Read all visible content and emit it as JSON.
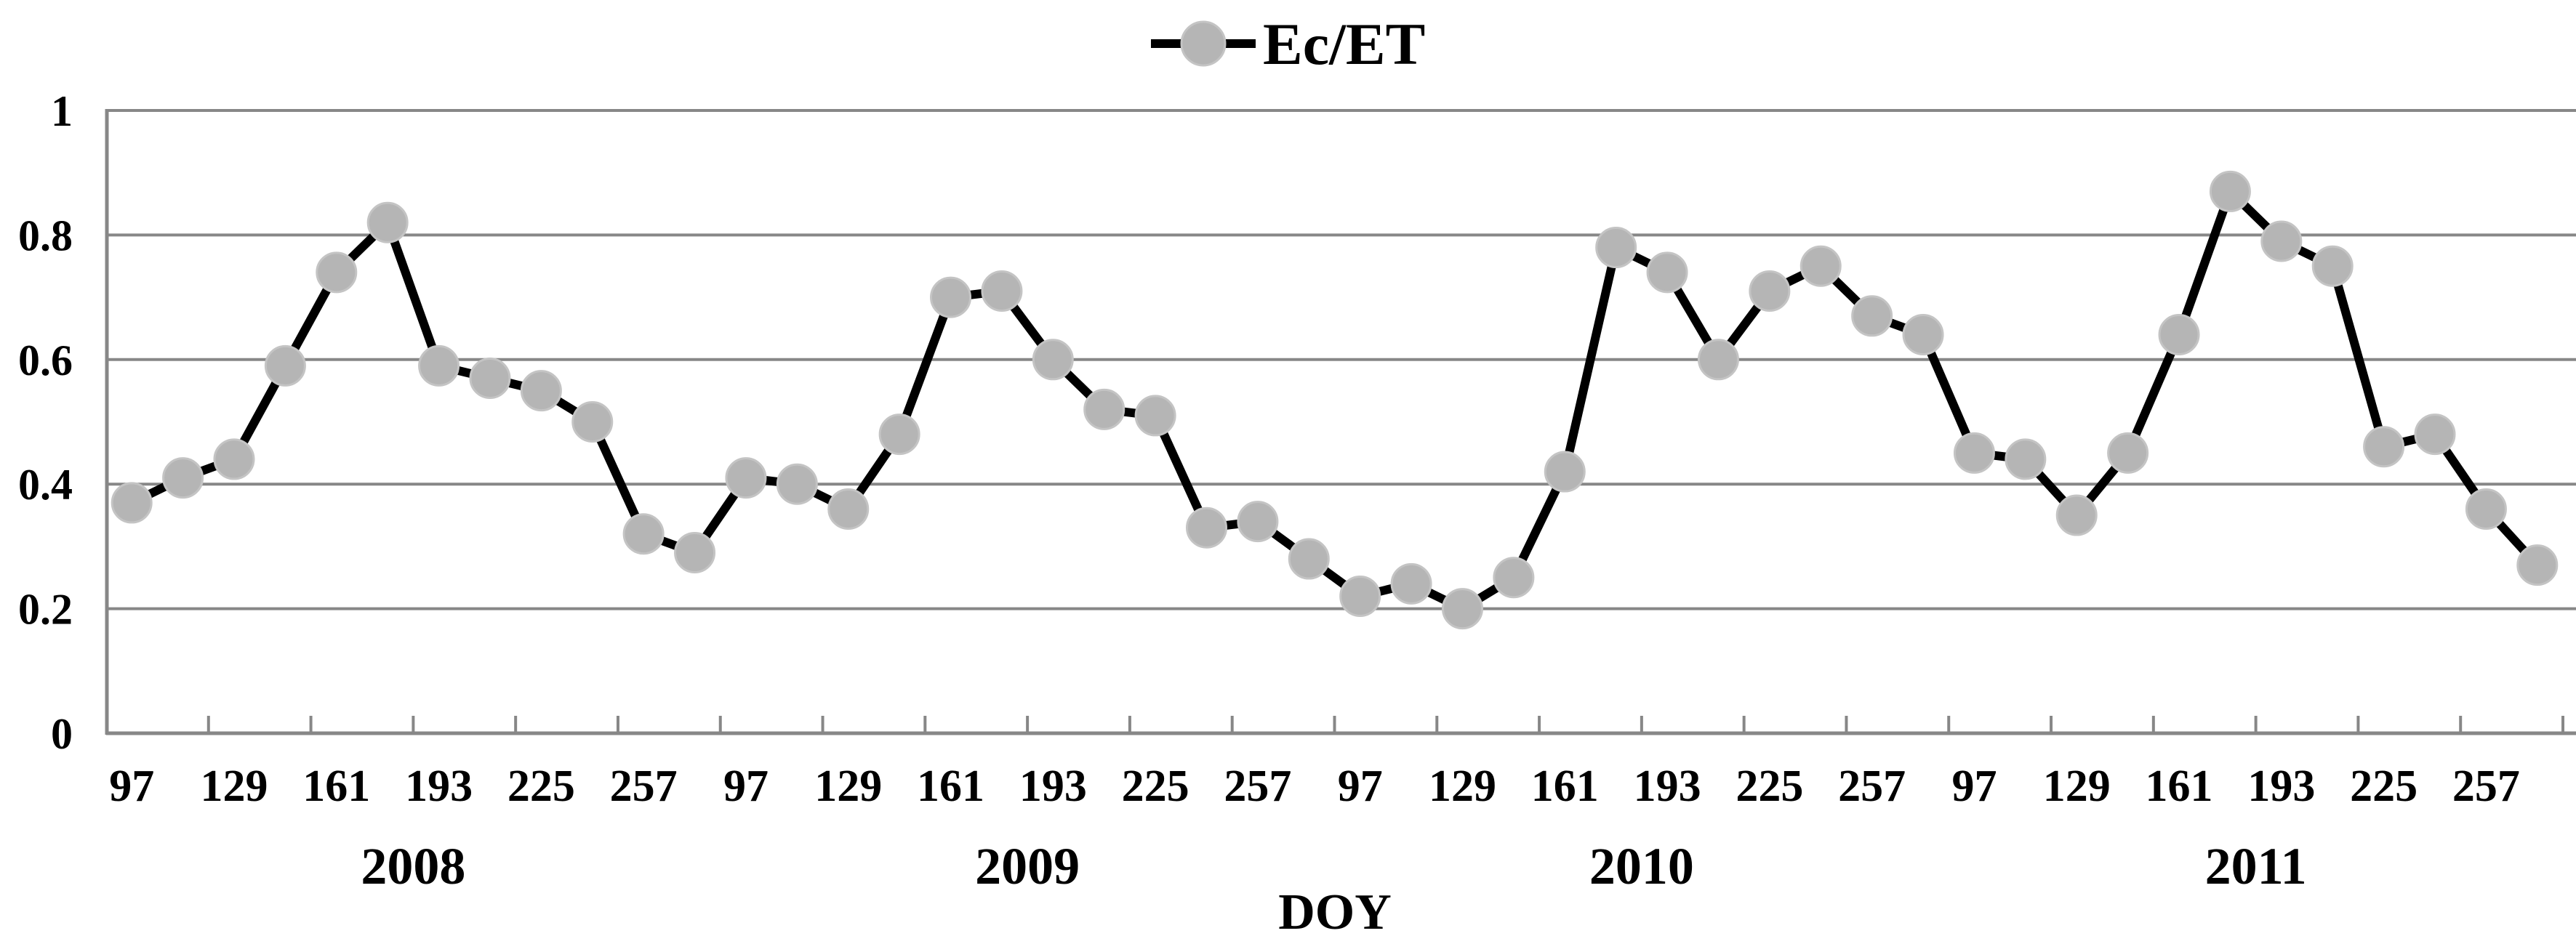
{
  "legend": {
    "label": "Ec/ET"
  },
  "axes": {
    "x": {
      "title": "DOY"
    },
    "y": {
      "tick_labels": [
        "1",
        "0.8",
        "0.6",
        "0.4",
        "0.2",
        "0"
      ]
    }
  },
  "colors": {
    "series_line": "#000000",
    "marker_fill": "#b5b5b5",
    "marker_edge": "#c4c4c4",
    "grid": "#878787",
    "text": "#000000",
    "background": "#ffffff"
  },
  "chart_data": {
    "type": "line",
    "title": "",
    "xlabel": "DOY",
    "ylabel": "",
    "ylim": [
      0,
      1
    ],
    "y_ticks": [
      1,
      0.8,
      0.6,
      0.4,
      0.2,
      0
    ],
    "grid": "horizontal",
    "legend_entries": [
      "Ec/ET"
    ],
    "legend_position": "top-center",
    "marker": "circle",
    "years": [
      "2008",
      "2009",
      "2010",
      "2011"
    ],
    "doy_per_year": [
      97,
      113,
      129,
      145,
      161,
      177,
      193,
      209,
      225,
      241,
      257,
      273
    ],
    "x_tick_labels_per_year": [
      "97",
      "129",
      "161",
      "193",
      "225",
      "257"
    ],
    "series": [
      {
        "name": "Ec/ET",
        "values_by_year": {
          "2008": [
            0.37,
            0.41,
            0.44,
            0.59,
            0.74,
            0.82,
            0.59,
            0.57,
            0.55,
            0.5,
            0.32,
            0.29
          ],
          "2009": [
            0.41,
            0.4,
            0.36,
            0.48,
            0.7,
            0.71,
            0.6,
            0.52,
            0.51,
            0.33,
            0.34,
            0.28
          ],
          "2010": [
            0.22,
            0.24,
            0.2,
            0.25,
            0.42,
            0.78,
            0.74,
            0.6,
            0.71,
            0.75,
            0.67,
            0.64
          ],
          "2011": [
            0.45,
            0.44,
            0.35,
            0.45,
            0.64,
            0.87,
            0.79,
            0.75,
            0.46,
            0.48,
            0.36,
            0.27
          ]
        }
      }
    ]
  }
}
